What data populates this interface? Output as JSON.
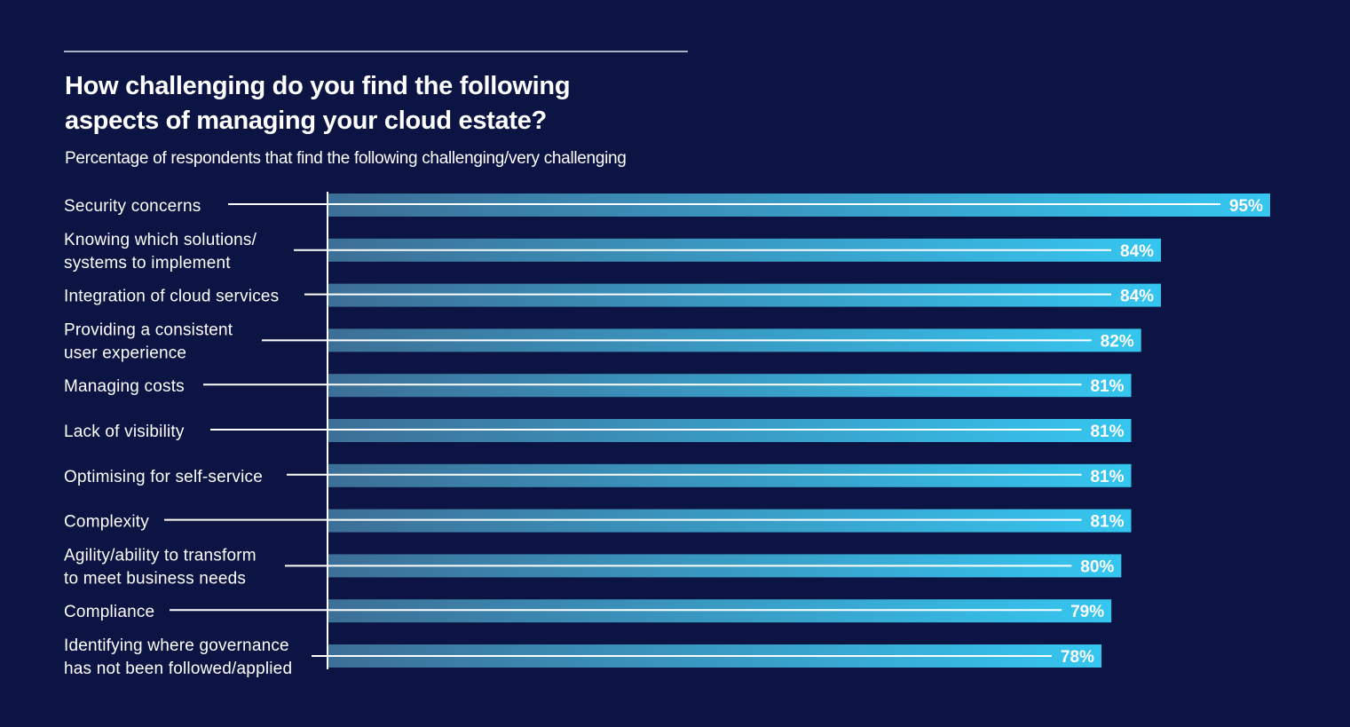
{
  "header": {
    "title_line1": "How challenging do you find the following",
    "title_line2": "aspects of managing your cloud estate?",
    "subtitle": "Percentage of respondents that find the following challenging/very challenging"
  },
  "colors": {
    "background": "#0b1443",
    "bar_start": "#3d6f97",
    "bar_end": "#35c6f0",
    "leader_line": "#ffffff",
    "rule": "#a9b0c6"
  },
  "chart_data": {
    "type": "bar",
    "orientation": "horizontal",
    "title": "How challenging do you find the following aspects of managing your cloud estate?",
    "subtitle": "Percentage of respondents that find the following challenging/very challenging",
    "xlabel": "",
    "ylabel": "",
    "unit": "%",
    "xlim": [
      0,
      95
    ],
    "grid": false,
    "legend": "none",
    "categories": [
      [
        "Security concerns"
      ],
      [
        "Knowing which solutions/",
        "systems to implement"
      ],
      [
        "Integration of cloud services"
      ],
      [
        "Providing a consistent",
        "user experience"
      ],
      [
        "Managing costs"
      ],
      [
        "Lack of visibility"
      ],
      [
        "Optimising for self-service"
      ],
      [
        "Complexity"
      ],
      [
        "Agility/ability to transform",
        "to meet business needs"
      ],
      [
        "Compliance"
      ],
      [
        "Identifying where governance",
        "has not been followed/applied"
      ]
    ],
    "values": [
      95,
      84,
      84,
      82,
      81,
      81,
      81,
      81,
      80,
      79,
      78
    ],
    "value_labels": [
      "95%",
      "84%",
      "84%",
      "82%",
      "81%",
      "81%",
      "81%",
      "81%",
      "80%",
      "79%",
      "78%"
    ]
  }
}
